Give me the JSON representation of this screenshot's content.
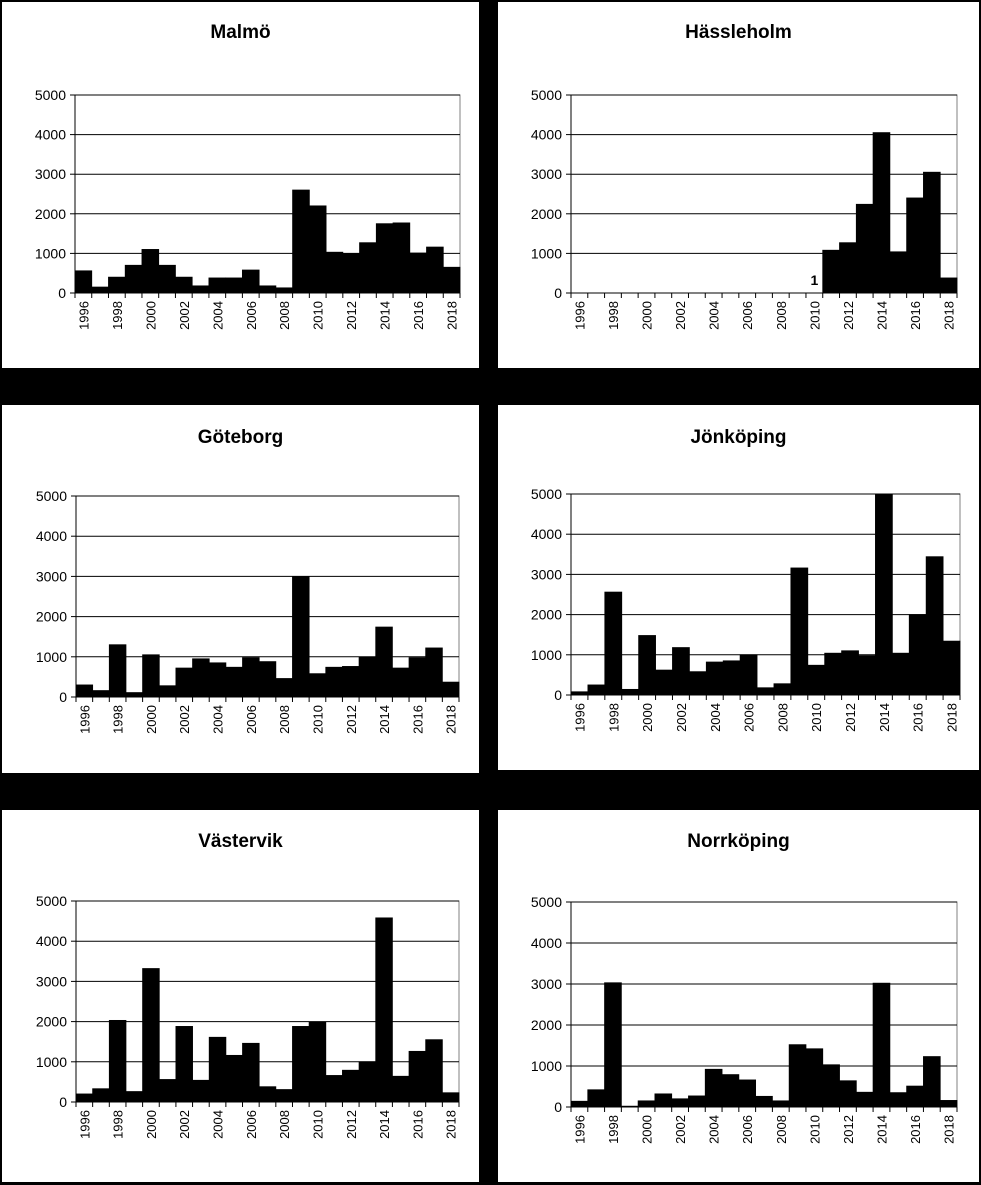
{
  "chart_data": [
    {
      "type": "bar",
      "title": "Malmö",
      "x": [
        1996,
        1997,
        1998,
        1999,
        2000,
        2001,
        2002,
        2003,
        2004,
        2005,
        2006,
        2007,
        2008,
        2009,
        2010,
        2011,
        2012,
        2013,
        2014,
        2015,
        2016,
        2017,
        2018
      ],
      "values": [
        560,
        150,
        400,
        700,
        1100,
        700,
        400,
        180,
        380,
        380,
        580,
        180,
        130,
        2600,
        2200,
        1030,
        990,
        1270,
        1750,
        1770,
        1010,
        1160,
        650
      ],
      "tick_labels": [
        "1996",
        "1998",
        "2000",
        "2002",
        "2004",
        "2006",
        "2008",
        "2010",
        "2012",
        "2014",
        "2016",
        "2018"
      ],
      "ylim": [
        0,
        5000
      ],
      "yticks": [
        "0",
        "1000",
        "2000",
        "3000",
        "4000",
        "5000"
      ],
      "grid": true
    },
    {
      "type": "bar",
      "title": "Hässleholm",
      "x": [
        1996,
        1997,
        1998,
        1999,
        2000,
        2001,
        2002,
        2003,
        2004,
        2005,
        2006,
        2007,
        2008,
        2009,
        2010,
        2011,
        2012,
        2013,
        2014,
        2015,
        2016,
        2017,
        2018
      ],
      "values": [
        0,
        0,
        0,
        0,
        0,
        0,
        0,
        0,
        0,
        0,
        0,
        0,
        0,
        0,
        1,
        1080,
        1270,
        2240,
        4050,
        1040,
        2400,
        3050,
        380
      ],
      "tick_labels": [
        "1996",
        "1998",
        "2000",
        "2002",
        "2004",
        "2006",
        "2008",
        "2010",
        "2012",
        "2014",
        "2016",
        "2018"
      ],
      "ylim": [
        0,
        5000
      ],
      "yticks": [
        "0",
        "1000",
        "2000",
        "3000",
        "4000",
        "5000"
      ],
      "grid": true,
      "annotation": {
        "text": "1",
        "year": 2010
      }
    },
    {
      "type": "bar",
      "title": "Göteborg",
      "x": [
        1996,
        1997,
        1998,
        1999,
        2000,
        2001,
        2002,
        2003,
        2004,
        2005,
        2006,
        2007,
        2008,
        2009,
        2010,
        2011,
        2012,
        2013,
        2014,
        2015,
        2016,
        2017,
        2018
      ],
      "values": [
        300,
        160,
        1300,
        110,
        1050,
        280,
        720,
        950,
        850,
        740,
        980,
        880,
        460,
        3000,
        580,
        740,
        760,
        990,
        1740,
        720,
        980,
        1220,
        370
      ],
      "tick_labels": [
        "1996",
        "1998",
        "2000",
        "2002",
        "2004",
        "2006",
        "2008",
        "2010",
        "2012",
        "2014",
        "2016",
        "2018"
      ],
      "ylim": [
        0,
        5000
      ],
      "yticks": [
        "0",
        "1000",
        "2000",
        "3000",
        "4000",
        "5000"
      ],
      "grid": true
    },
    {
      "type": "bar",
      "title": "Jönköping",
      "x": [
        1996,
        1997,
        1998,
        1999,
        2000,
        2001,
        2002,
        2003,
        2004,
        2005,
        2006,
        2007,
        2008,
        2009,
        2010,
        2011,
        2012,
        2013,
        2014,
        2015,
        2016,
        2017,
        2018
      ],
      "values": [
        80,
        250,
        2560,
        140,
        1480,
        620,
        1180,
        580,
        820,
        850,
        1000,
        180,
        280,
        3160,
        740,
        1040,
        1100,
        980,
        5000,
        1040,
        2000,
        3440,
        1340
      ],
      "tick_labels": [
        "1996",
        "1998",
        "2000",
        "2002",
        "2004",
        "2006",
        "2008",
        "2010",
        "2012",
        "2014",
        "2016",
        "2018"
      ],
      "ylim": [
        0,
        5000
      ],
      "yticks": [
        "0",
        "1000",
        "2000",
        "3000",
        "4000",
        "5000"
      ],
      "grid": true
    },
    {
      "type": "bar",
      "title": "Västervik",
      "x": [
        1996,
        1997,
        1998,
        1999,
        2000,
        2001,
        2002,
        2003,
        2004,
        2005,
        2006,
        2007,
        2008,
        2009,
        2010,
        2011,
        2012,
        2013,
        2014,
        2015,
        2016,
        2017,
        2018
      ],
      "values": [
        200,
        330,
        2030,
        260,
        3320,
        560,
        1880,
        540,
        1610,
        1160,
        1460,
        380,
        310,
        1880,
        1990,
        660,
        790,
        1000,
        4580,
        640,
        1260,
        1550,
        230
      ],
      "tick_labels": [
        "1996",
        "1998",
        "2000",
        "2002",
        "2004",
        "2006",
        "2008",
        "2010",
        "2012",
        "2014",
        "2016",
        "2018"
      ],
      "ylim": [
        0,
        5000
      ],
      "yticks": [
        "0",
        "1000",
        "2000",
        "3000",
        "4000",
        "5000"
      ],
      "grid": true
    },
    {
      "type": "bar",
      "title": "Norrköping",
      "x": [
        1996,
        1997,
        1998,
        1999,
        2000,
        2001,
        2002,
        2003,
        2004,
        2005,
        2006,
        2007,
        2008,
        2009,
        2010,
        2011,
        2012,
        2013,
        2014,
        2015,
        2016,
        2017,
        2018
      ],
      "values": [
        140,
        420,
        3030,
        20,
        150,
        320,
        200,
        270,
        920,
        790,
        660,
        260,
        150,
        1520,
        1420,
        1030,
        640,
        360,
        3020,
        350,
        510,
        1230,
        160
      ],
      "tick_labels": [
        "1996",
        "1998",
        "2000",
        "2002",
        "2004",
        "2006",
        "2008",
        "2010",
        "2012",
        "2014",
        "2016",
        "2018"
      ],
      "ylim": [
        0,
        5000
      ],
      "yticks": [
        "0",
        "1000",
        "2000",
        "3000",
        "4000",
        "5000"
      ],
      "grid": true
    }
  ]
}
